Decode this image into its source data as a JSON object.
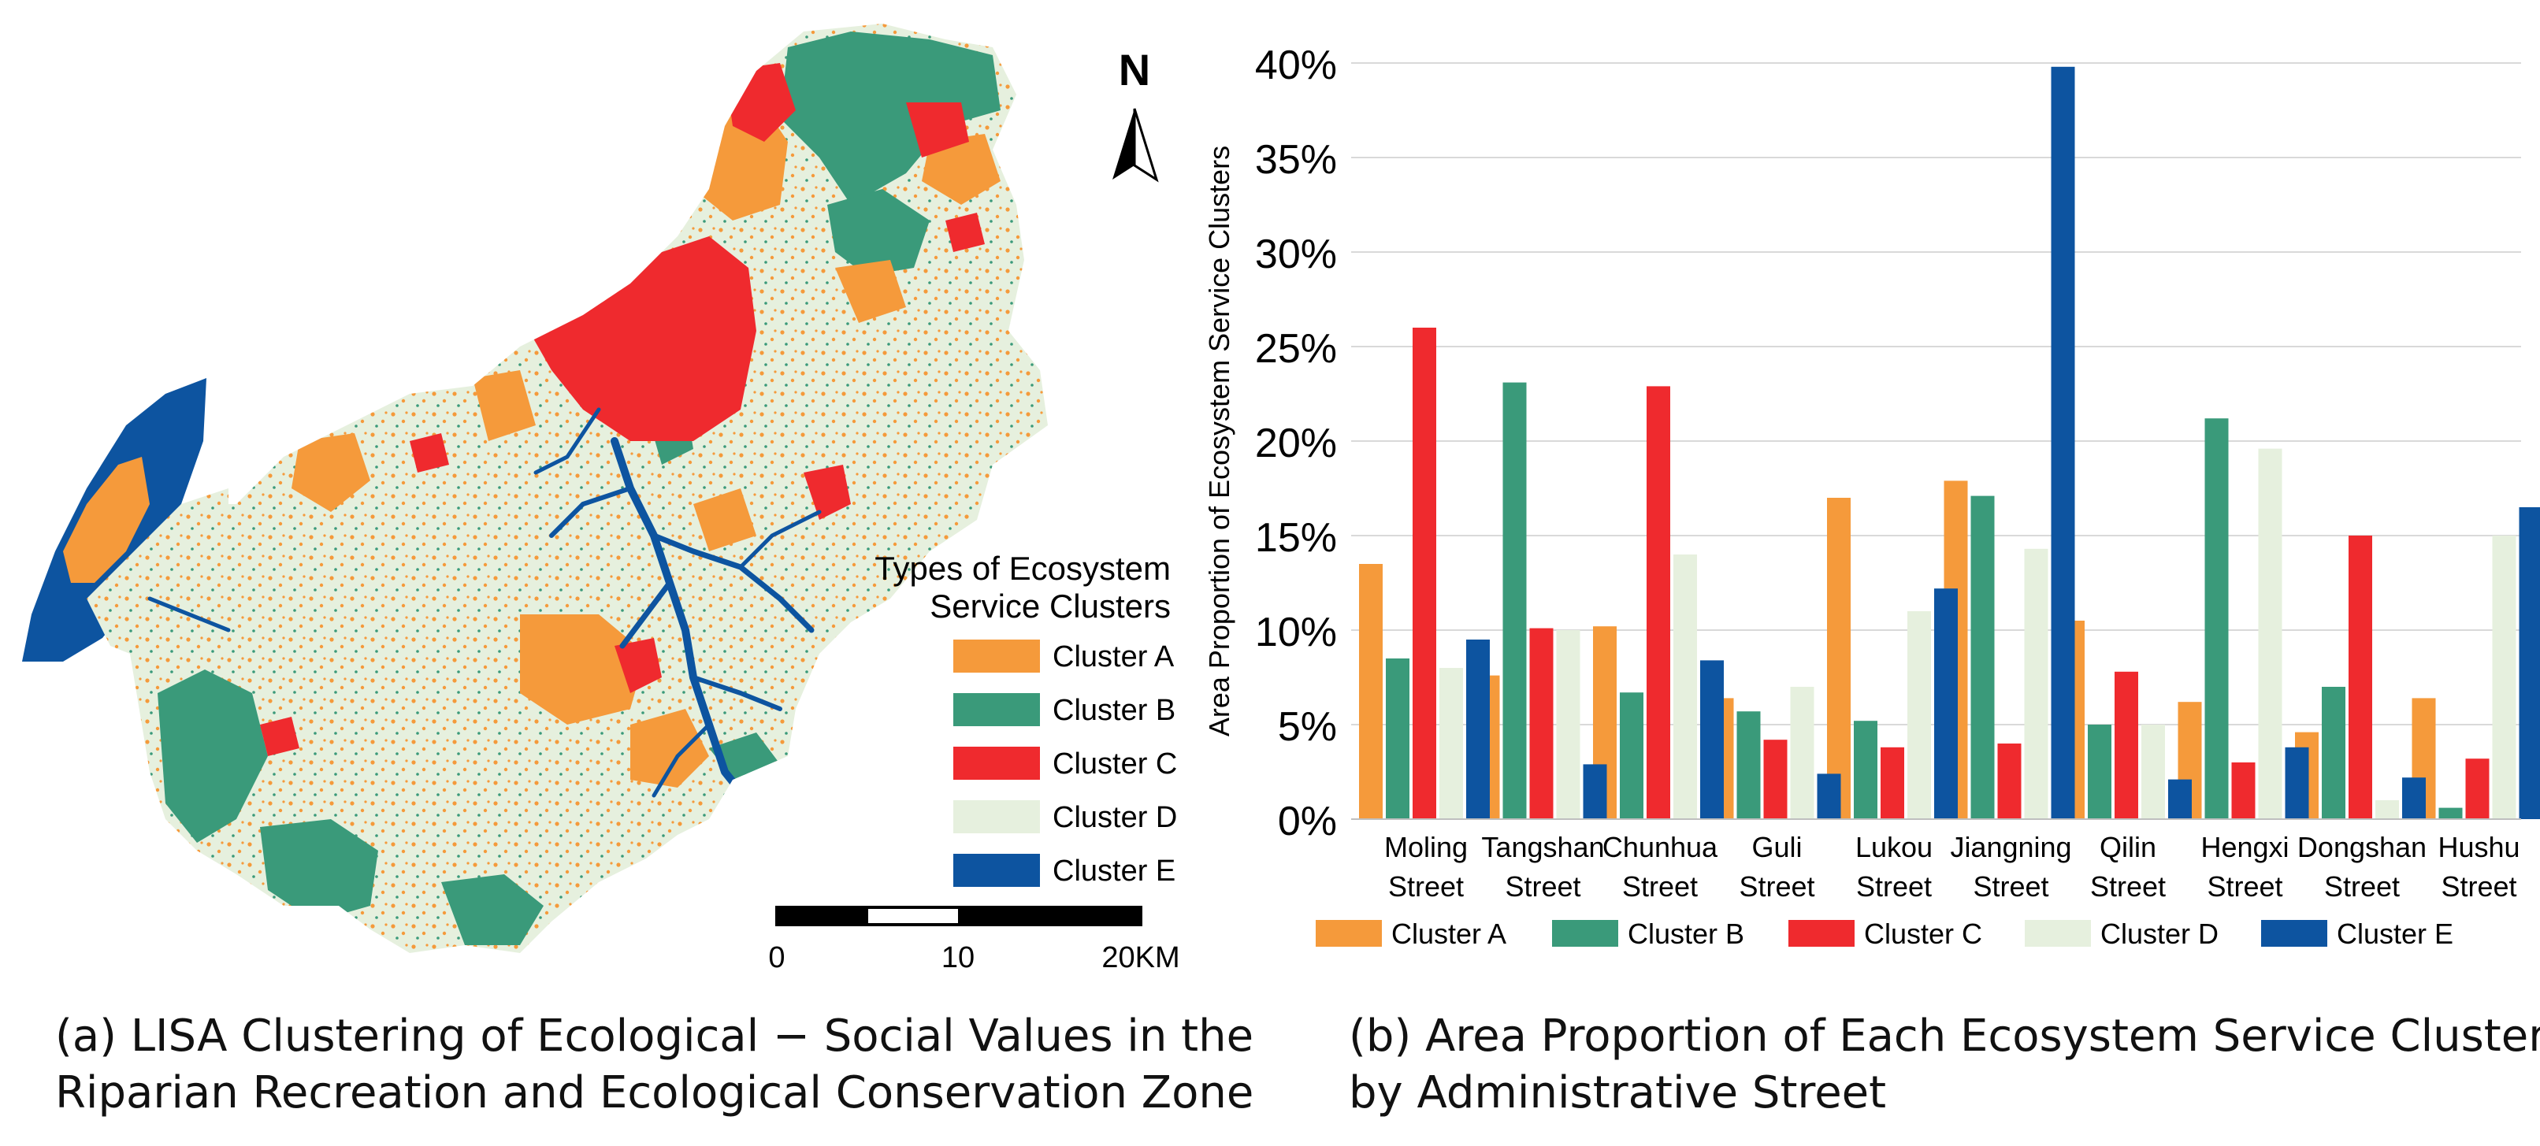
{
  "map": {
    "north_label": "N",
    "legend_title_line1": "Types of Ecosystem",
    "legend_title_line2": "Service Clusters",
    "legend": [
      {
        "label": "Cluster A",
        "color": "#f59a3b"
      },
      {
        "label": "Cluster B",
        "color": "#3a9a7a"
      },
      {
        "label": "Cluster C",
        "color": "#ef2a2e"
      },
      {
        "label": "Cluster D",
        "color": "#e6f0de"
      },
      {
        "label": "Cluster E",
        "color": "#0d54a0"
      }
    ],
    "scale_labels": [
      "0",
      "10",
      "20KM"
    ]
  },
  "captions": {
    "a_line1": "(a)  LISA Clustering of Ecological − Social Values in the",
    "a_line2": "Riparian Recreation and Ecological Conservation Zone",
    "b_line1": "(b) Area Proportion of Each Ecosystem Service Cluster",
    "b_line2": "by Administrative Street"
  },
  "chart_data": {
    "type": "bar",
    "title": "",
    "xlabel": "",
    "ylabel": "Area Proportion of Ecosystem Service Clusters",
    "ylim": [
      0,
      40
    ],
    "yticks": [
      "0%",
      "5%",
      "10%",
      "15%",
      "20%",
      "25%",
      "30%",
      "35%",
      "40%"
    ],
    "grid": true,
    "legend_position": "bottom",
    "categories": [
      [
        "Moling",
        "Street"
      ],
      [
        "Tangshan",
        "Street"
      ],
      [
        "Chunhua",
        "Street"
      ],
      [
        "Guli",
        "Street"
      ],
      [
        "Lukou",
        "Street"
      ],
      [
        "Jiangning",
        "Street"
      ],
      [
        "Qilin",
        "Street"
      ],
      [
        "Hengxi",
        "Street"
      ],
      [
        "Dongshan",
        "Street"
      ],
      [
        "Hushu",
        "Street"
      ]
    ],
    "series": [
      {
        "name": "Cluster A",
        "color": "#f59a3b",
        "values": [
          13.5,
          7.6,
          10.2,
          6.4,
          17.0,
          17.9,
          10.5,
          6.2,
          4.6,
          6.4
        ]
      },
      {
        "name": "Cluster B",
        "color": "#3a9a7a",
        "values": [
          8.5,
          23.1,
          6.7,
          5.7,
          5.2,
          17.1,
          5.0,
          21.2,
          7.0,
          0.6
        ]
      },
      {
        "name": "Cluster C",
        "color": "#ef2a2e",
        "values": [
          26.0,
          10.1,
          22.9,
          4.2,
          3.8,
          4.0,
          7.8,
          3.0,
          15.0,
          3.2
        ]
      },
      {
        "name": "Cluster D",
        "color": "#e6f0de",
        "values": [
          8.0,
          10.0,
          14.0,
          7.0,
          11.0,
          14.3,
          5.0,
          19.6,
          1.0,
          15.0
        ]
      },
      {
        "name": "Cluster E",
        "color": "#0d54a0",
        "values": [
          9.5,
          2.9,
          8.4,
          2.4,
          12.2,
          39.8,
          2.1,
          3.8,
          2.2,
          16.5
        ]
      }
    ]
  }
}
